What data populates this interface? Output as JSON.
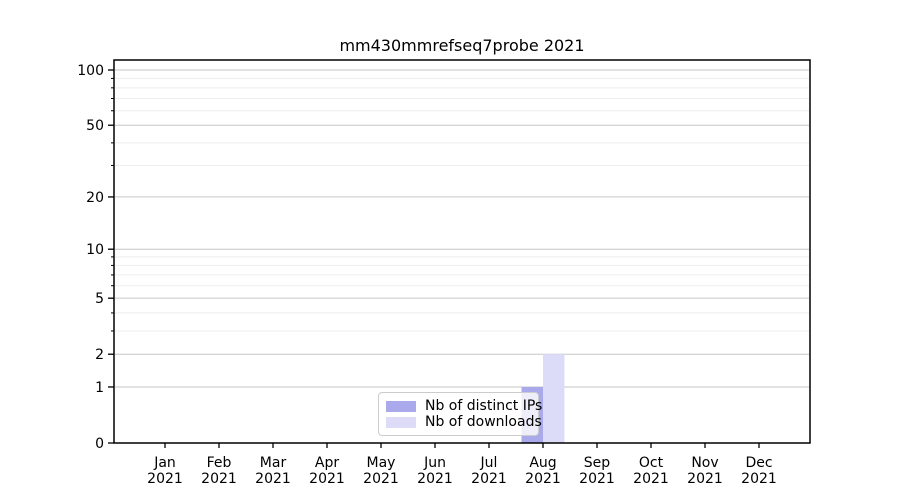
{
  "chart_data": {
    "type": "bar",
    "title": "mm430mmrefseq7probe 2021",
    "categories": [
      "Jan 2021",
      "Feb 2021",
      "Mar 2021",
      "Apr 2021",
      "May 2021",
      "Jun 2021",
      "Jul 2021",
      "Aug 2021",
      "Sep 2021",
      "Oct 2021",
      "Nov 2021",
      "Dec 2021"
    ],
    "series": [
      {
        "name": "Nb of distinct IPs",
        "color": "#a9a9ec",
        "values": [
          0,
          0,
          0,
          0,
          0,
          0,
          0,
          1,
          0,
          0,
          0,
          0
        ]
      },
      {
        "name": "Nb of downloads",
        "color": "#dcdcf8",
        "values": [
          0,
          0,
          0,
          0,
          0,
          0,
          0,
          2,
          0,
          0,
          0,
          0
        ]
      }
    ],
    "yscale": "log1p_base10",
    "ylim": [
      0,
      113.3
    ],
    "y_major_ticks": [
      0,
      1,
      2,
      5,
      10,
      20,
      50,
      100
    ],
    "y_minor_ticks": [
      3,
      4,
      6,
      7,
      8,
      9,
      30,
      40,
      60,
      70,
      80,
      90
    ],
    "grid": "horizontal",
    "legend_position": "lower center",
    "colors": {
      "grid_major": "#c6c6c6",
      "grid_minor": "#ededed",
      "axis": "#000000",
      "tick": "#000000",
      "legend_border": "#cccccc",
      "background": "#ffffff"
    }
  }
}
